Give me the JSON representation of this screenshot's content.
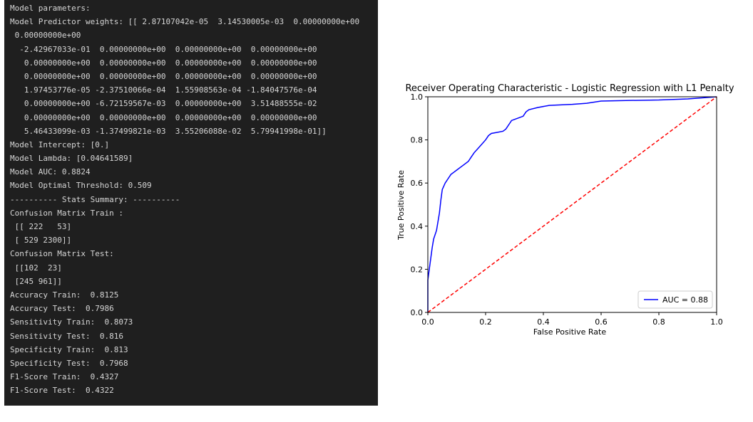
{
  "console": {
    "lines": [
      "Model parameters:",
      "Model Predictor weights: [[ 2.87107042e-05  3.14530005e-03  0.00000000e+00",
      " 0.00000000e+00",
      "  -2.42967033e-01  0.00000000e+00  0.00000000e+00  0.00000000e+00",
      "   0.00000000e+00  0.00000000e+00  0.00000000e+00  0.00000000e+00",
      "   0.00000000e+00  0.00000000e+00  0.00000000e+00  0.00000000e+00",
      "   1.97453776e-05 -2.37510066e-04  1.55908563e-04 -1.84047576e-04",
      "   0.00000000e+00 -6.72159567e-03  0.00000000e+00  3.51488555e-02",
      "   0.00000000e+00  0.00000000e+00  0.00000000e+00  0.00000000e+00",
      "   5.46433099e-03 -1.37499821e-03  3.55206088e-02  5.79941998e-01]]",
      "Model Intercept: [0.]",
      "Model Lambda: [0.04641589]",
      "Model AUC: 0.8824",
      "Model Optimal Threshold: 0.509",
      "---------- Stats Summary: ----------",
      "Confusion Matrix Train :",
      " [[ 222   53]",
      " [ 529 2300]]",
      "Confusion Matrix Test:",
      " [[102  23]",
      " [245 961]]",
      "Accuracy Train:  0.8125",
      "Accuracy Test:  0.7986",
      "Sensitivity Train:  0.8073",
      "Sensitivity Test:  0.816",
      "Specificity Train:  0.813",
      "Specificity Test:  0.7968",
      "F1-Score Train:  0.4327",
      "F1-Score Test:  0.4322"
    ]
  },
  "chart_data": {
    "type": "line",
    "title": "Receiver Operating Characteristic - Logistic Regression with L1 Penalty",
    "xlabel": "False Positive Rate",
    "ylabel": "True Positive Rate",
    "xlim": [
      0.0,
      1.0
    ],
    "ylim": [
      0.0,
      1.0
    ],
    "xticks": [
      "0.0",
      "0.2",
      "0.4",
      "0.6",
      "0.8",
      "1.0"
    ],
    "yticks": [
      "0.0",
      "0.2",
      "0.4",
      "0.6",
      "0.8",
      "1.0"
    ],
    "legend_position": "lower-right",
    "series": [
      {
        "name": "AUC = 0.88",
        "color": "#0000ff",
        "style": "solid",
        "points": [
          [
            0.0,
            0.0
          ],
          [
            0.0,
            0.15
          ],
          [
            0.005,
            0.2
          ],
          [
            0.01,
            0.25
          ],
          [
            0.015,
            0.3
          ],
          [
            0.02,
            0.34
          ],
          [
            0.025,
            0.36
          ],
          [
            0.03,
            0.38
          ],
          [
            0.035,
            0.42
          ],
          [
            0.04,
            0.46
          ],
          [
            0.045,
            0.52
          ],
          [
            0.05,
            0.57
          ],
          [
            0.06,
            0.6
          ],
          [
            0.07,
            0.62
          ],
          [
            0.08,
            0.64
          ],
          [
            0.09,
            0.65
          ],
          [
            0.1,
            0.66
          ],
          [
            0.12,
            0.68
          ],
          [
            0.14,
            0.7
          ],
          [
            0.15,
            0.72
          ],
          [
            0.16,
            0.74
          ],
          [
            0.18,
            0.77
          ],
          [
            0.2,
            0.8
          ],
          [
            0.21,
            0.82
          ],
          [
            0.22,
            0.83
          ],
          [
            0.24,
            0.835
          ],
          [
            0.26,
            0.84
          ],
          [
            0.27,
            0.85
          ],
          [
            0.28,
            0.87
          ],
          [
            0.29,
            0.89
          ],
          [
            0.31,
            0.9
          ],
          [
            0.33,
            0.91
          ],
          [
            0.34,
            0.93
          ],
          [
            0.35,
            0.94
          ],
          [
            0.38,
            0.95
          ],
          [
            0.42,
            0.96
          ],
          [
            0.5,
            0.965
          ],
          [
            0.55,
            0.97
          ],
          [
            0.6,
            0.98
          ],
          [
            0.7,
            0.983
          ],
          [
            0.8,
            0.985
          ],
          [
            0.9,
            0.99
          ],
          [
            0.95,
            0.995
          ],
          [
            1.0,
            1.0
          ]
        ]
      },
      {
        "name": "",
        "color": "#ff0000",
        "style": "dashed",
        "points": [
          [
            0.0,
            0.0
          ],
          [
            1.0,
            1.0
          ]
        ]
      }
    ]
  }
}
